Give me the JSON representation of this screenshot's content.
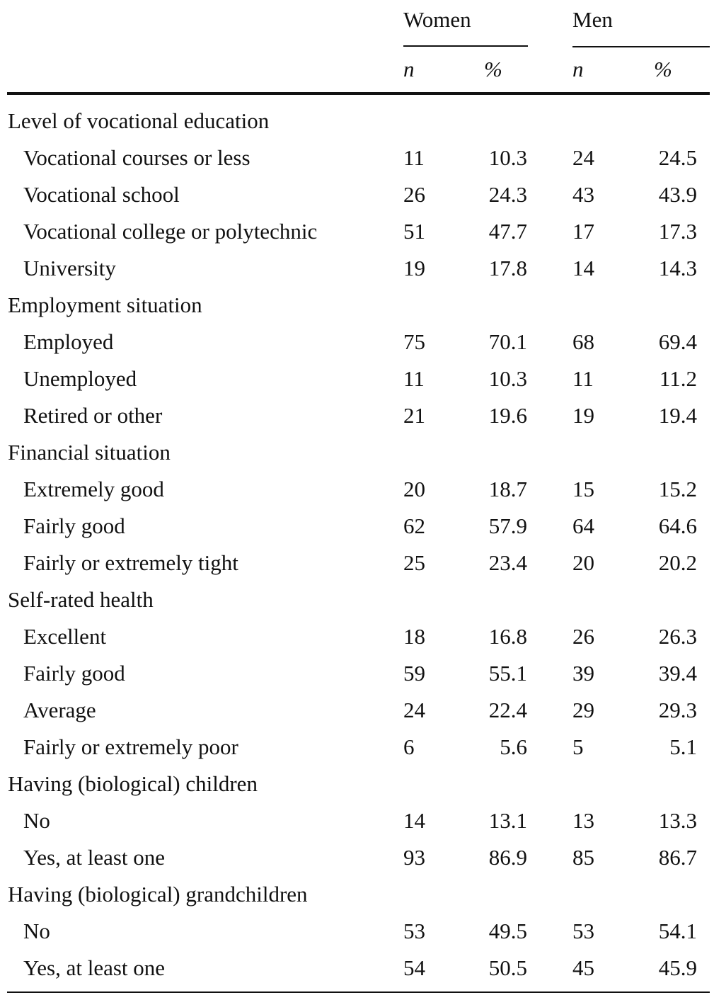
{
  "header": {
    "groups": [
      "Women",
      "Men"
    ],
    "sub": [
      "n",
      "%",
      "n",
      "%"
    ]
  },
  "rows": [
    {
      "label": "Level of vocational education",
      "section": true
    },
    {
      "label": "Vocational courses or less",
      "wn": "11",
      "wp": "10.3",
      "mn": "24",
      "mp": "24.5"
    },
    {
      "label": "Vocational school",
      "wn": "26",
      "wp": "24.3",
      "mn": "43",
      "mp": "43.9"
    },
    {
      "label": "Vocational college or polytechnic",
      "wn": "51",
      "wp": "47.7",
      "mn": "17",
      "mp": "17.3"
    },
    {
      "label": "University",
      "wn": "19",
      "wp": "17.8",
      "mn": "14",
      "mp": "14.3"
    },
    {
      "label": "Employment situation",
      "section": true
    },
    {
      "label": "Employed",
      "wn": "75",
      "wp": "70.1",
      "mn": "68",
      "mp": "69.4"
    },
    {
      "label": "Unemployed",
      "wn": "11",
      "wp": "10.3",
      "mn": "11",
      "mp": "11.2"
    },
    {
      "label": "Retired or other",
      "wn": "21",
      "wp": "19.6",
      "mn": "19",
      "mp": "19.4"
    },
    {
      "label": "Financial situation",
      "section": true
    },
    {
      "label": "Extremely good",
      "wn": "20",
      "wp": "18.7",
      "mn": "15",
      "mp": "15.2"
    },
    {
      "label": "Fairly good",
      "wn": "62",
      "wp": "57.9",
      "mn": "64",
      "mp": "64.6"
    },
    {
      "label": "Fairly or extremely tight",
      "wn": "25",
      "wp": "23.4",
      "mn": "20",
      "mp": "20.2"
    },
    {
      "label": "Self-rated health",
      "section": true
    },
    {
      "label": "Excellent",
      "wn": "18",
      "wp": "16.8",
      "mn": "26",
      "mp": "26.3"
    },
    {
      "label": "Fairly good",
      "wn": "59",
      "wp": "55.1",
      "mn": "39",
      "mp": "39.4"
    },
    {
      "label": "Average",
      "wn": "24",
      "wp": "22.4",
      "mn": "29",
      "mp": "29.3"
    },
    {
      "label": "Fairly or extremely poor",
      "wn": "6",
      "wp": "5.6",
      "mn": "5",
      "mp": "5.1"
    },
    {
      "label": "Having (biological) children",
      "section": true
    },
    {
      "label": "No",
      "wn": "14",
      "wp": "13.1",
      "mn": "13",
      "mp": "13.3"
    },
    {
      "label": "Yes, at least one",
      "wn": "93",
      "wp": "86.9",
      "mn": "85",
      "mp": "86.7"
    },
    {
      "label": "Having (biological) grandchildren",
      "section": true
    },
    {
      "label": "No",
      "wn": "53",
      "wp": "49.5",
      "mn": "53",
      "mp": "54.1"
    },
    {
      "label": "Yes, at least one",
      "wn": "54",
      "wp": "50.5",
      "mn": "45",
      "mp": "45.9"
    }
  ]
}
